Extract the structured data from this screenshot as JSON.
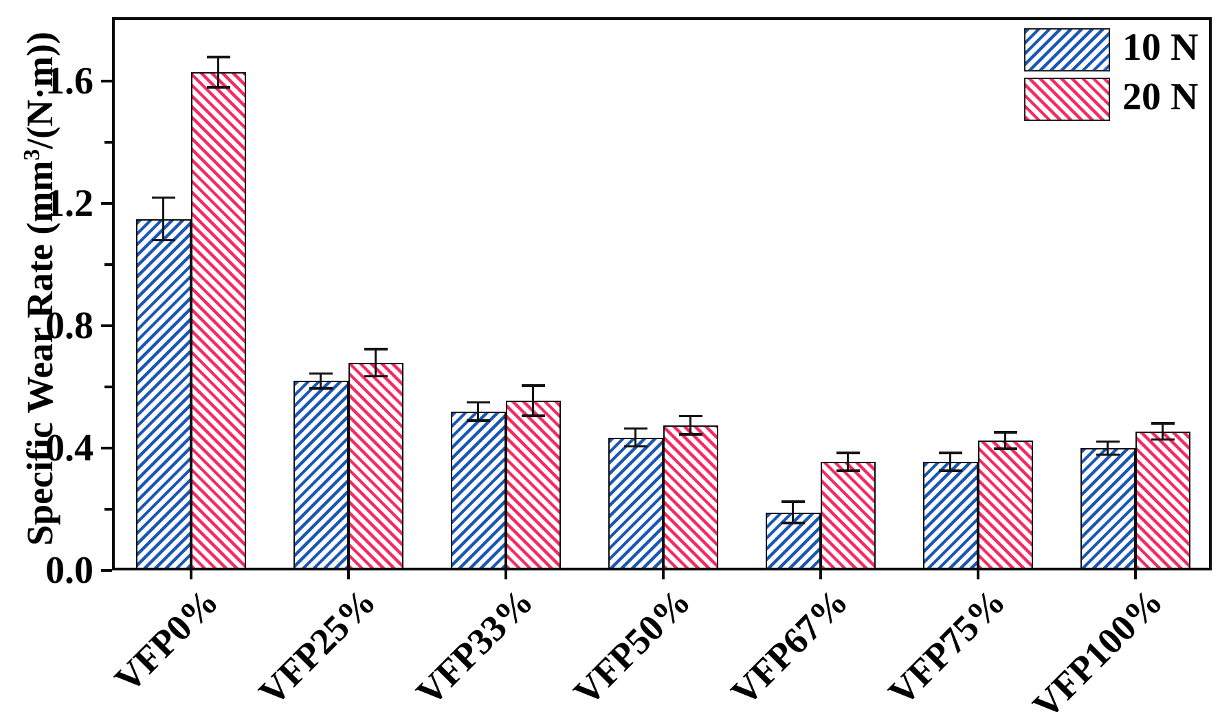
{
  "figure": {
    "background": "#ffffff"
  },
  "chart_data": {
    "type": "bar",
    "title": "",
    "categories": [
      "VFP0%",
      "VFP25%",
      "VFP33%",
      "VFP50%",
      "VFP67%",
      "VFP75%",
      "VFP100%"
    ],
    "series": [
      {
        "name": "10 N",
        "color": "#1b57b5",
        "hatch": "/",
        "values": [
          1.15,
          0.62,
          0.52,
          0.435,
          0.19,
          0.355,
          0.4
        ],
        "errors": [
          0.07,
          0.025,
          0.03,
          0.03,
          0.035,
          0.03,
          0.022
        ]
      },
      {
        "name": "20 N",
        "color": "#f72b62",
        "hatch": "\\",
        "values": [
          1.63,
          0.68,
          0.555,
          0.475,
          0.355,
          0.425,
          0.455
        ],
        "errors": [
          0.05,
          0.045,
          0.05,
          0.03,
          0.03,
          0.028,
          0.027
        ]
      }
    ],
    "ylabel": "Specific Wear Rate (mm³/(N·m))",
    "ylabel_parts": {
      "pre": "Specific Wear Rate (mm",
      "sup": "3",
      "post": "/(N·m))"
    },
    "xlabel": "",
    "ytick_labels": [
      "0.0",
      "0.4",
      "0.8",
      "1.2",
      "1.6"
    ],
    "ytick_values": [
      0,
      0.4,
      0.8,
      1.2,
      1.6
    ],
    "minor_ytick_values": [
      0.2,
      0.6,
      1.0,
      1.4
    ],
    "ylim": [
      0,
      1.81
    ],
    "grid": false,
    "legend_position": "top-right-inside",
    "error_bar_color": "#131313",
    "bar_outline_color": "#0e0e0e"
  }
}
